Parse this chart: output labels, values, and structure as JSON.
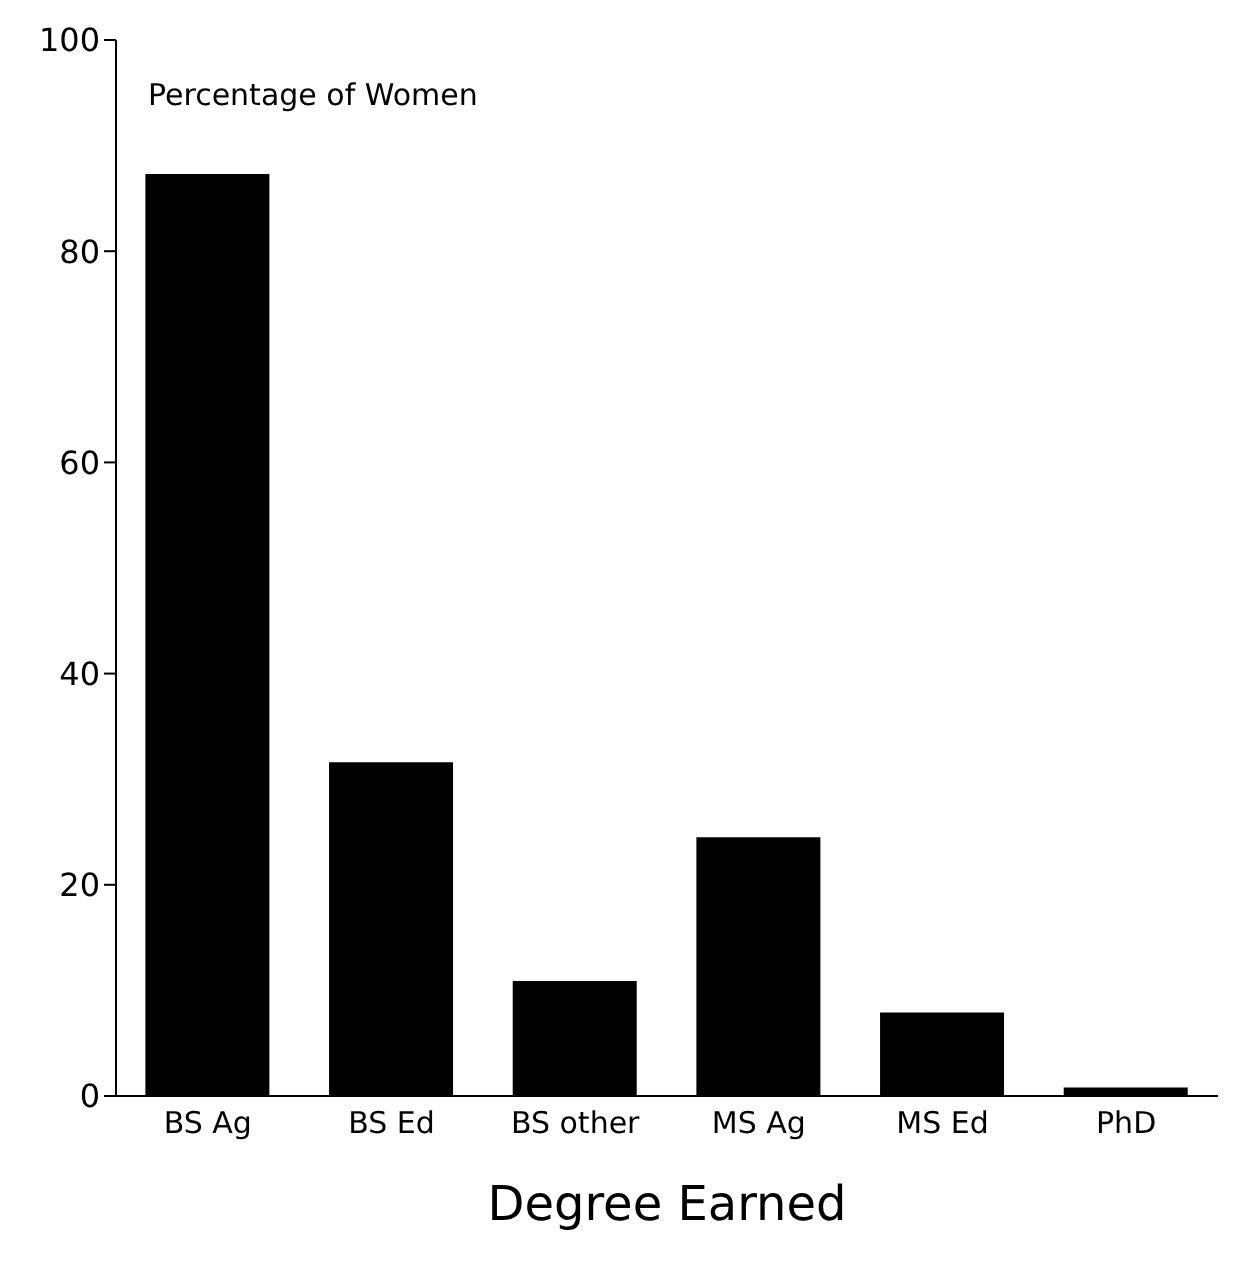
{
  "chart_data": {
    "type": "bar",
    "xlabel": "Degree Earned",
    "ylabel": "Percentage of Women",
    "categories": [
      "BS Ag",
      "BS Ed",
      "BS other",
      "MS Ag",
      "MS Ed",
      "PhD"
    ],
    "values": [
      87.3,
      31.6,
      10.9,
      24.5,
      7.9,
      0.8
    ],
    "color": "#000000",
    "ylim": [
      0,
      100
    ],
    "yticks": [
      0,
      20,
      40,
      60,
      80,
      100
    ],
    "grid": false
  }
}
